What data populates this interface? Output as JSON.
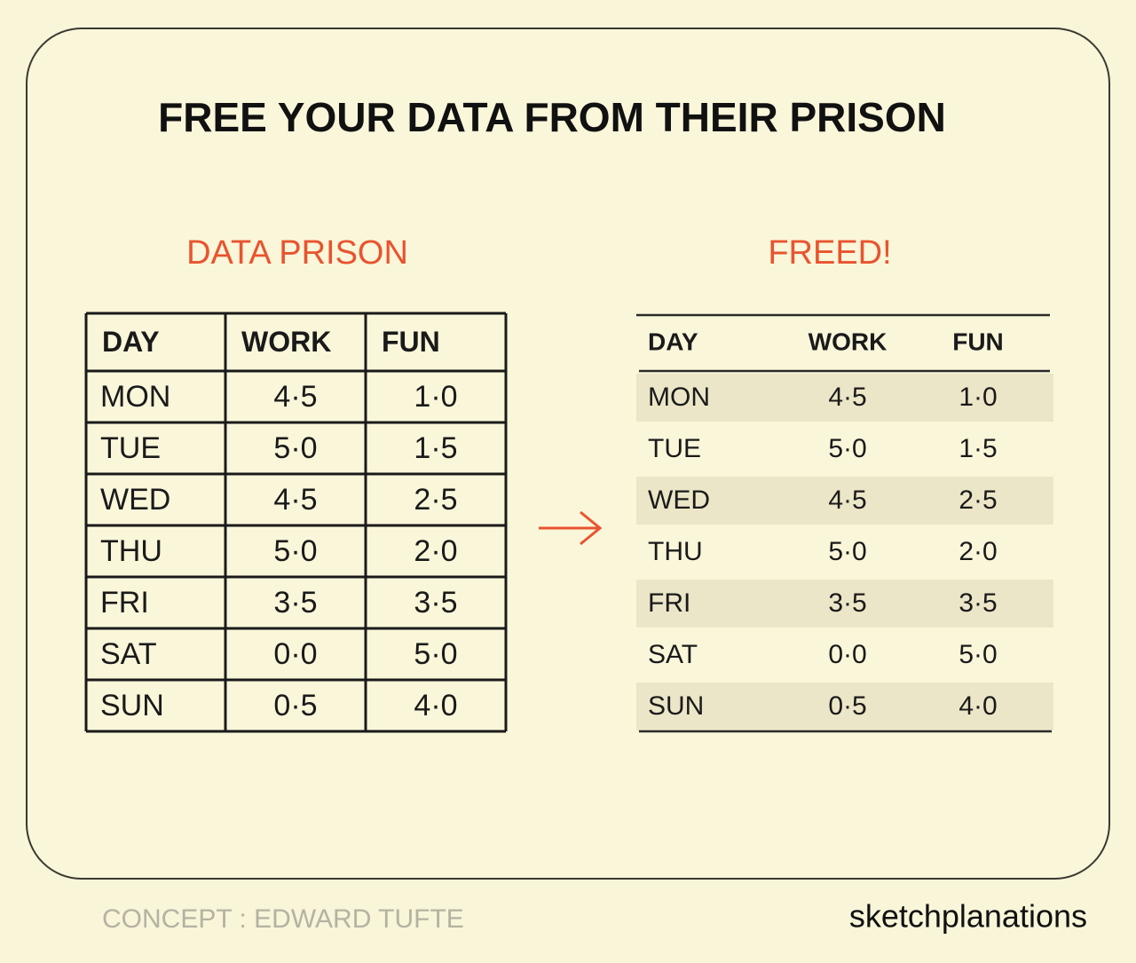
{
  "title": "FREE YOUR DATA FROM THEIR PRISON",
  "prison_table": {
    "heading": "DATA PRISON",
    "header": [
      "DAY",
      "WORK",
      "FUN"
    ],
    "rows": [
      [
        "MON",
        "4·5",
        "1·0"
      ],
      [
        "TUE",
        "5·0",
        "1·5"
      ],
      [
        "WED",
        "4·5",
        "2·5"
      ],
      [
        "THU",
        "5·0",
        "2·0"
      ],
      [
        "FRI",
        "3·5",
        "3·5"
      ],
      [
        "SAT",
        "0·0",
        "5·0"
      ],
      [
        "SUN",
        "0·5",
        "4·0"
      ]
    ]
  },
  "freed_table": {
    "heading": "FREED!",
    "header": [
      "DAY",
      "WORK",
      "FUN"
    ],
    "rows": [
      [
        "MON",
        "4·5",
        "1·0"
      ],
      [
        "TUE",
        "5·0",
        "1·5"
      ],
      [
        "WED",
        "4·5",
        "2·5"
      ],
      [
        "THU",
        "5·0",
        "2·0"
      ],
      [
        "FRI",
        "3·5",
        "3·5"
      ],
      [
        "SAT",
        "0·0",
        "5·0"
      ],
      [
        "SUN",
        "0·5",
        "4·0"
      ]
    ]
  },
  "footer": {
    "concept": "CONCEPT : EDWARD TUFTE",
    "brand": "sketchplanations"
  }
}
